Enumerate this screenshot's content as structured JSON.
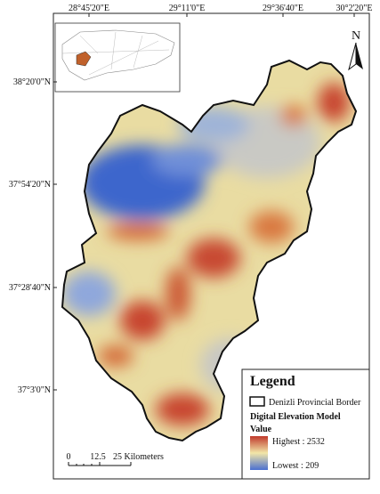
{
  "map": {
    "top_labels": [
      "28°45'20\"E",
      "29°11'0\"E",
      "29°36'40\"E",
      "30°2'20\"E"
    ],
    "left_labels": [
      "38°20'0\"N",
      "37°54'20\"N",
      "37°28'40\"N",
      "37°3'0\"N"
    ],
    "north": "N",
    "legend": {
      "title": "Legend",
      "border": "Denizli Provincial Border",
      "dem": "Digital Elevation Model",
      "value": "Value",
      "highest": "Highest : 2532",
      "lowest": "Lowest : 209"
    },
    "scale": {
      "zero": "0",
      "mid": "12.5",
      "end": "25 Kilometers"
    }
  }
}
